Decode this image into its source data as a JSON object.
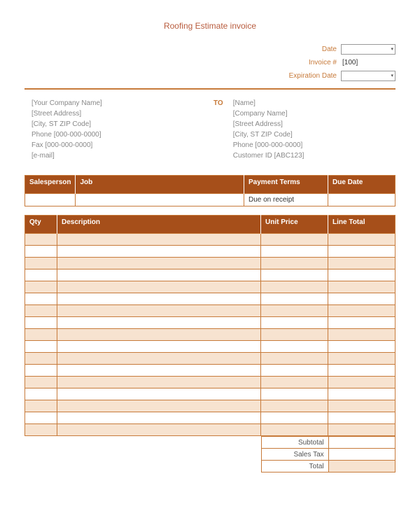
{
  "title": "Roofing Estimate invoice",
  "meta": {
    "date_label": "Date",
    "date_value": "",
    "invoice_label": "Invoice #",
    "invoice_value": "[100]",
    "expiration_label": "Expiration Date",
    "expiration_value": ""
  },
  "from": {
    "l1": "[Your Company Name]",
    "l2": "[Street Address]",
    "l3": "[City, ST  ZIP Code]",
    "l4": "Phone [000-000-0000]",
    "l5": "Fax [000-000-0000]",
    "l6": "[e-mail]"
  },
  "to_label": "TO",
  "to": {
    "l1": "[Name]",
    "l2": "[Company Name]",
    "l3": "[Street Address]",
    "l4": "[City, ST  ZIP Code]",
    "l5": "Phone [000-000-0000]",
    "l6": "Customer ID [ABC123]"
  },
  "info_table": {
    "headers": {
      "salesperson": "Salesperson",
      "job": "Job",
      "payment_terms": "Payment Terms",
      "due_date": "Due Date"
    },
    "row": {
      "salesperson": "",
      "job": "",
      "payment_terms": "Due on receipt",
      "due_date": ""
    }
  },
  "items_table": {
    "headers": {
      "qty": "Qty",
      "description": "Description",
      "unit_price": "Unit Price",
      "line_total": "Line Total"
    },
    "row_count": 17,
    "column_widths": {
      "qty": 46,
      "unit_price": 96,
      "line_total": 96
    }
  },
  "totals": {
    "subtotal_label": "Subtotal",
    "subtotal_value": "",
    "salestax_label": "Sales Tax",
    "salestax_value": "",
    "total_label": "Total",
    "total_value": ""
  },
  "colors": {
    "header_bg": "#a64f1a",
    "accent": "#c77a3a",
    "alt_row": "#f7e3d0",
    "title": "#b85c3e",
    "muted_text": "#888888"
  }
}
